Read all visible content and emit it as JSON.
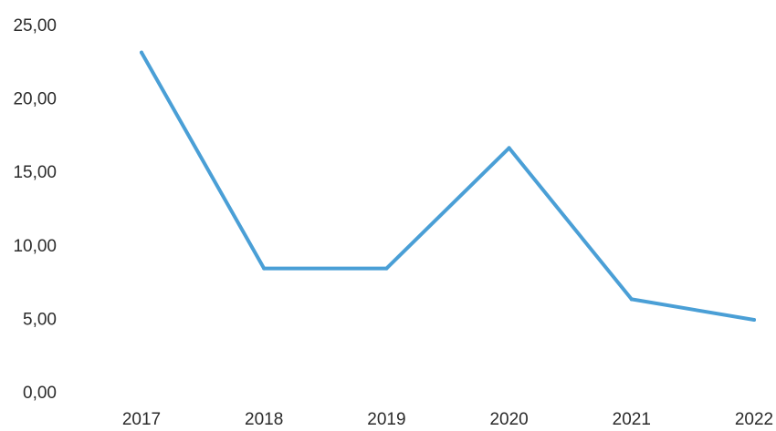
{
  "chart_data": {
    "type": "line",
    "categories": [
      "2017",
      "2018",
      "2019",
      "2020",
      "2021",
      "2022"
    ],
    "series": [
      {
        "values": [
          23.1,
          8.4,
          8.4,
          16.6,
          6.3,
          4.9
        ],
        "color": "#4a9fd6"
      }
    ],
    "y_ticks": [
      "0,00",
      "5,00",
      "10,00",
      "15,00",
      "20,00",
      "25,00"
    ],
    "ylim": [
      0,
      25
    ],
    "grid": false,
    "legend": "none"
  }
}
